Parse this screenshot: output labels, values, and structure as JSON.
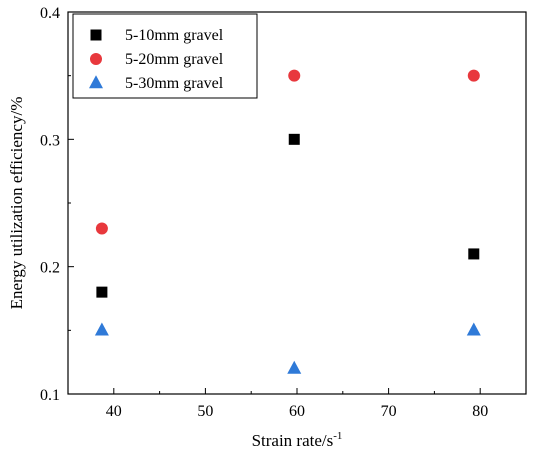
{
  "chart_data": {
    "type": "scatter",
    "xlabel": "Strain rate/s",
    "xlabel_superscript": "-1",
    "ylabel": "Energy utilization efficiency/%",
    "xlim": [
      35,
      85
    ],
    "ylim": [
      0.1,
      0.4
    ],
    "xticks": [
      40,
      50,
      60,
      70,
      80
    ],
    "xtick_labels": [
      "40",
      "50",
      "60",
      "70",
      "80"
    ],
    "yticks": [
      0.1,
      0.2,
      0.3,
      0.4
    ],
    "ytick_labels": [
      "0.1",
      "0.2",
      "0.3",
      "0.4"
    ],
    "grid": false,
    "legend_position": "top-left",
    "series": [
      {
        "name": "5-10mm gravel",
        "marker": "square",
        "color": "#000000",
        "x": [
          38.7,
          59.7,
          79.3
        ],
        "y": [
          0.18,
          0.3,
          0.21
        ]
      },
      {
        "name": "5-20mm gravel",
        "marker": "circle",
        "color": "#e8383d",
        "x": [
          38.7,
          59.7,
          79.3
        ],
        "y": [
          0.23,
          0.35,
          0.35
        ]
      },
      {
        "name": "5-30mm gravel",
        "marker": "triangle",
        "color": "#2f7ad8",
        "x": [
          38.7,
          59.7,
          79.3
        ],
        "y": [
          0.15,
          0.12,
          0.15
        ]
      }
    ]
  }
}
